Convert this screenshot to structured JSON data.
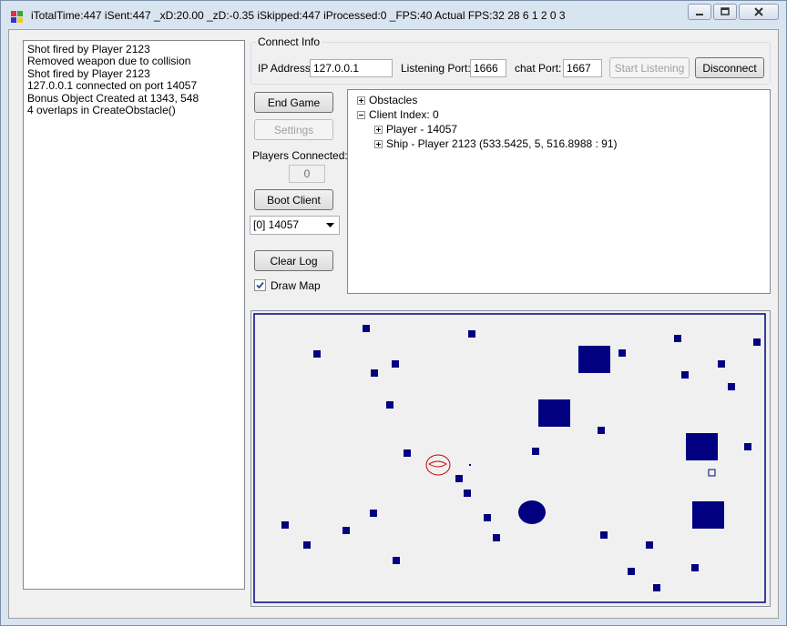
{
  "window": {
    "title": "iTotalTime:447  iSent:447  _xD:20.00  _zD:-0.35  iSkipped:447  iProcessed:0  _FPS:40  Actual FPS:32 28 6 1 2 0 3",
    "minimize_glyph": "—",
    "maximize_glyph": "□",
    "close_glyph": "✕"
  },
  "log": {
    "lines": [
      "Shot fired by Player 2123",
      "Removed weapon due to collision",
      "Shot fired by Player 2123",
      "127.0.0.1 connected on port 14057",
      "Bonus Object Created at 1343, 548",
      "4 overlaps in CreateObstacle()"
    ]
  },
  "connect": {
    "group_label": "Connect Info",
    "ip_label": "IP Address:",
    "ip_value": "127.0.0.1",
    "port_label": "Listening Port:",
    "port_value": "1666",
    "chat_label": "chat Port:",
    "chat_value": "1667",
    "start_label": "Start Listening",
    "disconnect_label": "Disconnect"
  },
  "controls": {
    "end_game": "End Game",
    "settings": "Settings",
    "players_connected_label": "Players Connected:",
    "players_connected_value": "0",
    "boot_client": "Boot Client",
    "client_selected": "[0] 14057",
    "clear_log": "Clear Log",
    "draw_map_label": "Draw Map",
    "draw_map_checked": true
  },
  "tree": {
    "obstacles": "Obstacles",
    "client_index": "Client Index: 0",
    "player": "Player - 14057",
    "ship": "Ship - Player 2123 (533.5425, 5, 516.8988 : 91)"
  },
  "colors": {
    "obstacle": "#000080",
    "ship_outline": "#cc0000",
    "map_border": "#000080"
  }
}
